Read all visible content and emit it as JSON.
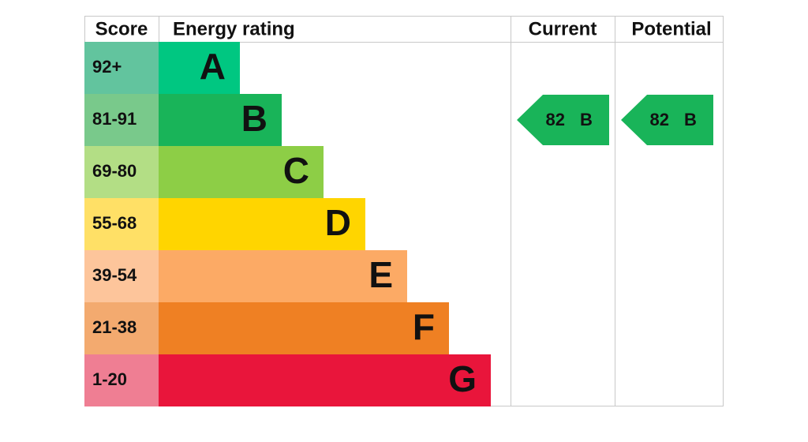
{
  "header": {
    "score": "Score",
    "rating": "Energy rating",
    "current": "Current",
    "potential": "Potential"
  },
  "rows": [
    {
      "score": "92+",
      "letter": "A",
      "score_color": "#62c49e",
      "bar_color": "#00c781"
    },
    {
      "score": "81-91",
      "letter": "B",
      "score_color": "#79c98b",
      "bar_color": "#19b459"
    },
    {
      "score": "69-80",
      "letter": "C",
      "score_color": "#b3de85",
      "bar_color": "#8dce46"
    },
    {
      "score": "55-68",
      "letter": "D",
      "score_color": "#ffe066",
      "bar_color": "#ffd500"
    },
    {
      "score": "39-54",
      "letter": "E",
      "score_color": "#fdc59b",
      "bar_color": "#fcaa65"
    },
    {
      "score": "21-38",
      "letter": "F",
      "score_color": "#f3aa6f",
      "bar_color": "#ef8023"
    },
    {
      "score": "1-20",
      "letter": "G",
      "score_color": "#ef7e93",
      "bar_color": "#e9153b"
    }
  ],
  "current": {
    "value": 82,
    "letter": "B"
  },
  "potential": {
    "value": 82,
    "letter": "B"
  }
}
